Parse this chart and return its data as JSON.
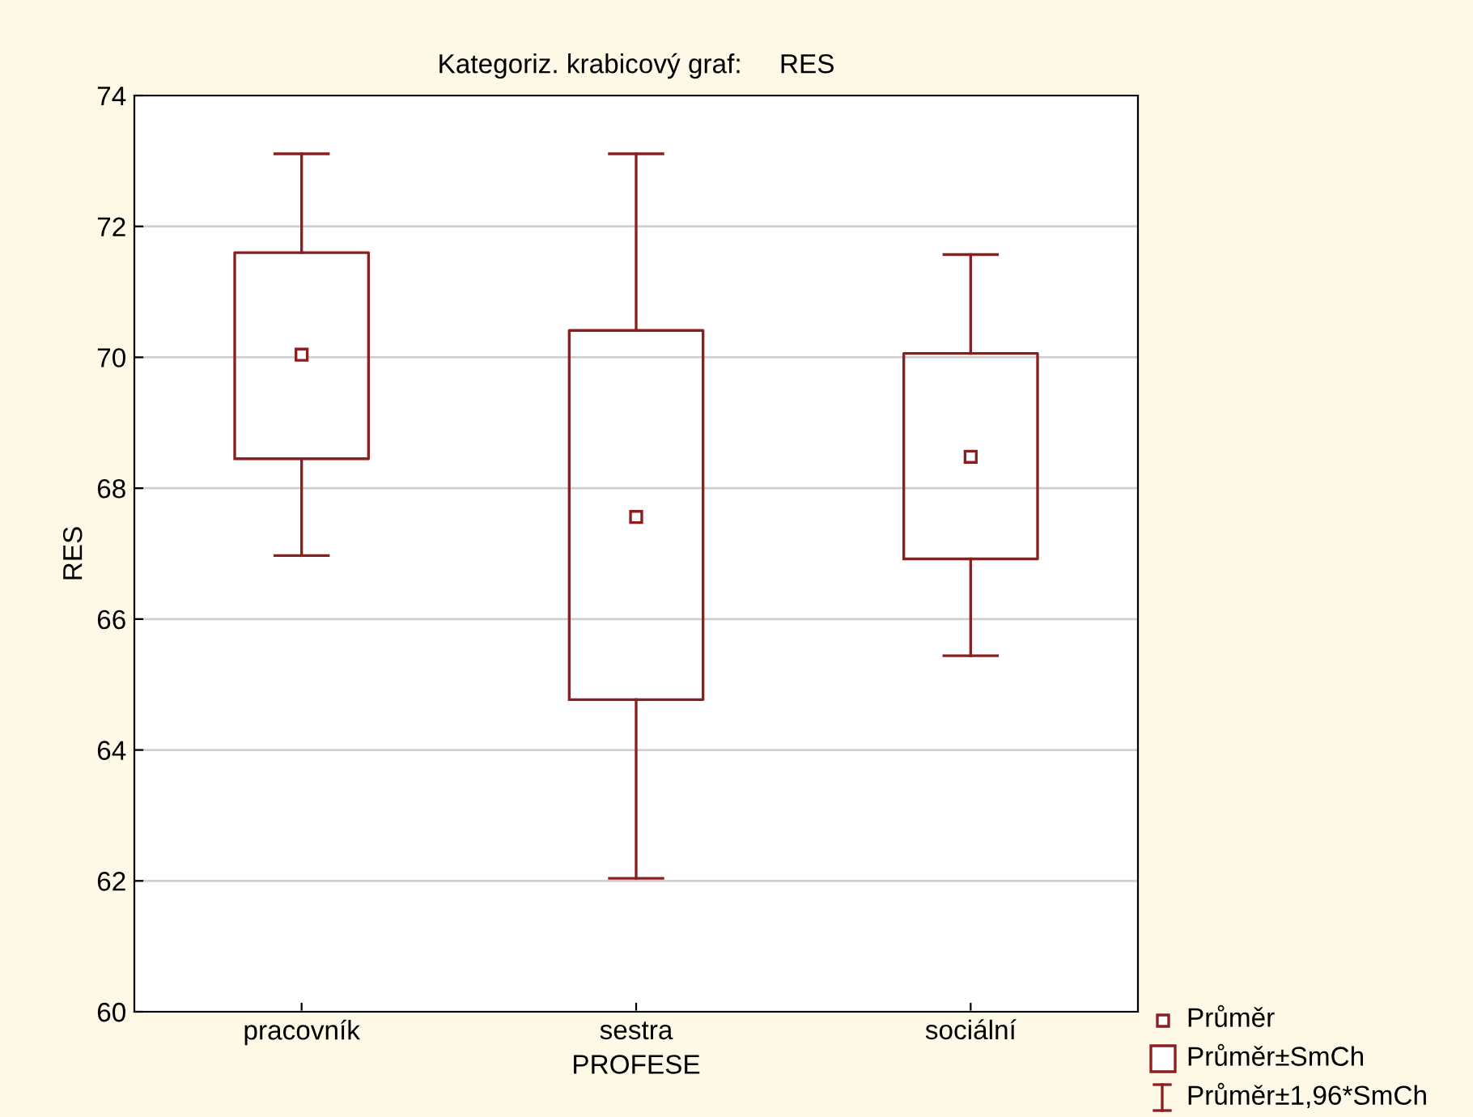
{
  "chart_data": {
    "type": "box",
    "title": "Kategoriz. krabicový graf:     RES",
    "xlabel": "PROFESE",
    "ylabel": "RES",
    "categories": [
      "pracovník",
      "sestra",
      "sociální"
    ],
    "boxes": [
      {
        "low": 66.97,
        "q1": 68.45,
        "median": 70.04,
        "q3": 71.6,
        "high": 73.11
      },
      {
        "low": 62.04,
        "q1": 64.77,
        "median": 67.56,
        "q3": 70.41,
        "high": 73.11
      },
      {
        "low": 65.44,
        "q1": 66.92,
        "median": 68.48,
        "q3": 70.06,
        "high": 71.57
      }
    ],
    "color": "#8b1f1f",
    "ylim": [
      60,
      74
    ],
    "yticks": [
      60,
      62,
      64,
      66,
      68,
      70,
      72,
      74
    ],
    "grid": "y",
    "marker": "square",
    "annotations": [
      "Průměr",
      "Průměr±SmCh",
      "Průměr±1,96*SmCh"
    ]
  }
}
